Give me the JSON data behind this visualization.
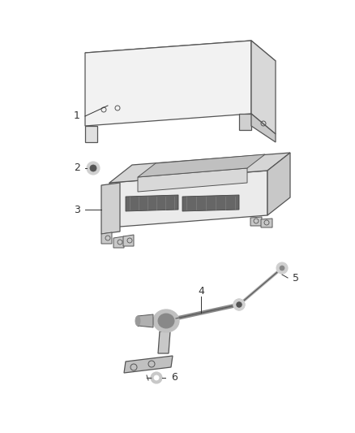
{
  "background_color": "#ffffff",
  "fig_width": 4.38,
  "fig_height": 5.33,
  "dpi": 100,
  "line_color": "#555555",
  "label_color": "#333333",
  "label_fontsize": 9,
  "lw": 0.9
}
